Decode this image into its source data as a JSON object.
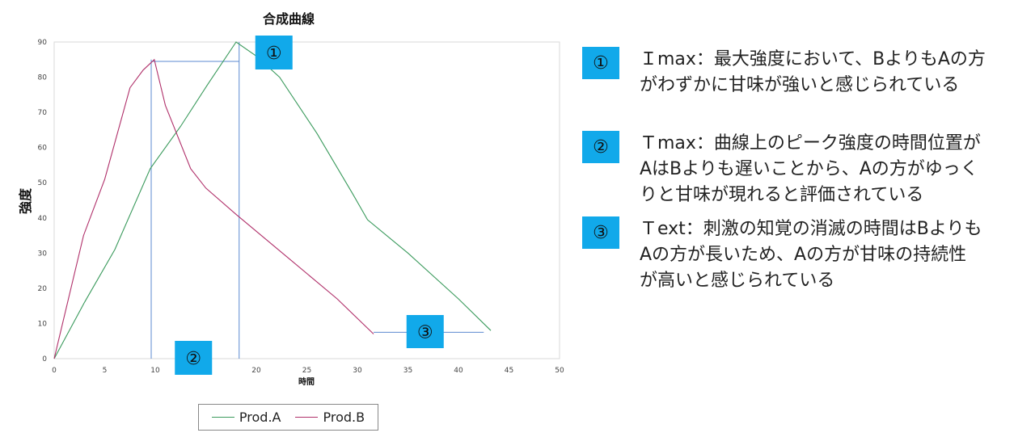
{
  "chart_data": {
    "type": "line",
    "title": "合成曲線",
    "xlabel": "時間",
    "ylabel": "強度",
    "xlim": [
      0,
      50
    ],
    "ylim": [
      0,
      90
    ],
    "xticks": [
      0,
      5,
      10,
      15,
      20,
      25,
      30,
      35,
      40,
      45,
      50
    ],
    "yticks": [
      0,
      10,
      20,
      30,
      40,
      50,
      60,
      70,
      80,
      90
    ],
    "grid": false,
    "legend": "bottom",
    "series": [
      {
        "name": "Prod.A",
        "color": "#3a9a5c",
        "points": [
          [
            0,
            0
          ],
          [
            3,
            16
          ],
          [
            6,
            31
          ],
          [
            9.5,
            54
          ],
          [
            12.5,
            66
          ],
          [
            15.2,
            78
          ],
          [
            18,
            90
          ],
          [
            20,
            86
          ],
          [
            22.3,
            80
          ],
          [
            26,
            64
          ],
          [
            29.5,
            47
          ],
          [
            31,
            39.5
          ],
          [
            35,
            30
          ],
          [
            40,
            17
          ],
          [
            43.2,
            8
          ]
        ]
      },
      {
        "name": "Prod.B",
        "color": "#b0306a",
        "points": [
          [
            0,
            0
          ],
          [
            2.9,
            35
          ],
          [
            5,
            51
          ],
          [
            7.5,
            77
          ],
          [
            8.8,
            82
          ],
          [
            9.9,
            85
          ],
          [
            11,
            72
          ],
          [
            13.5,
            54
          ],
          [
            15,
            48.5
          ],
          [
            18,
            41
          ],
          [
            23,
            29
          ],
          [
            28,
            17
          ],
          [
            31.6,
            7
          ]
        ]
      }
    ],
    "annotations": [
      {
        "label": "①",
        "x": 18.3
      },
      {
        "label": "②",
        "x": 9.7
      },
      {
        "label": "③",
        "x": 37.5
      }
    ]
  },
  "notes": [
    {
      "badge": "①",
      "text": "Ｉmax：最大強度において、BよりもAの方\nがわずかに甘味が強いと感じられている"
    },
    {
      "badge": "②",
      "text": "Ｔmax：曲線上のピーク強度の時間位置が\nAはBよりも遅いことから、Aの方がゆっく\nりと甘味が現れると評価されている"
    },
    {
      "badge": "③",
      "text": "Ｔext：刺激の知覚の消滅の時間はBよりも\nAの方が長いため、Aの方が甘味の持続性\nが高いと感じられている"
    }
  ]
}
